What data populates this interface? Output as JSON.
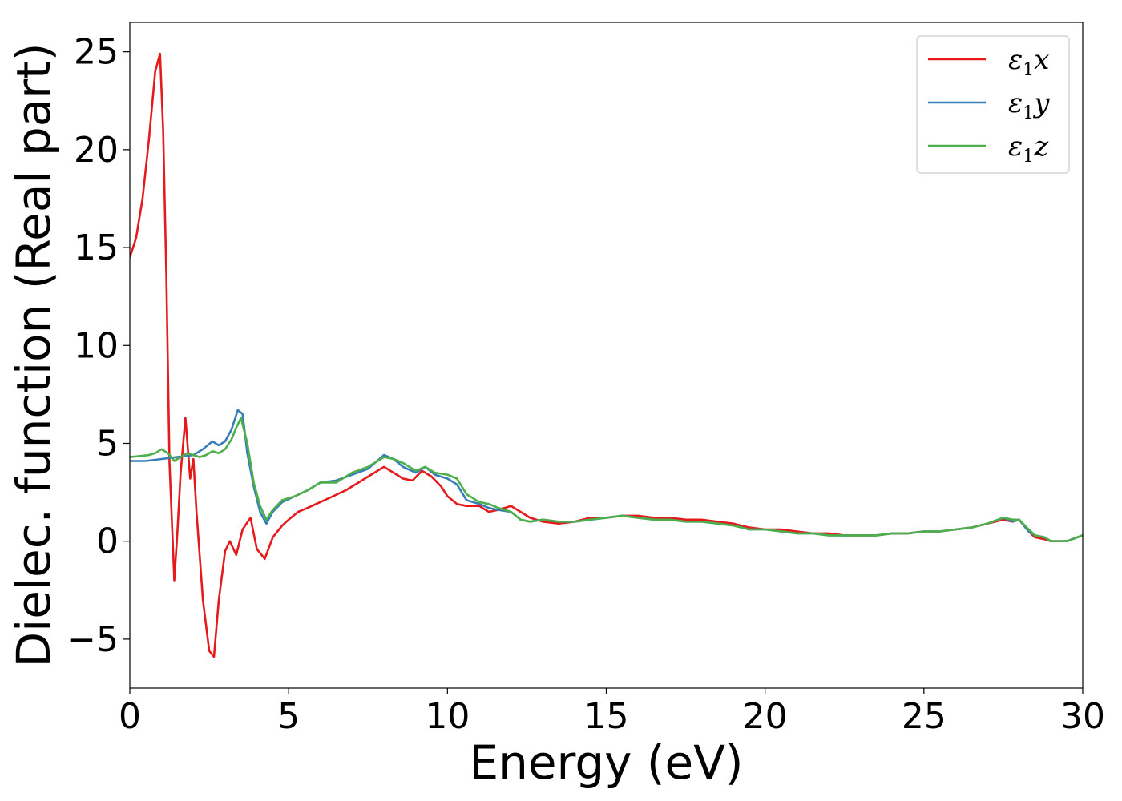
{
  "chart_data": {
    "type": "line",
    "title": "",
    "xlabel": "Energy (eV)",
    "ylabel": "Dielec. function (Real part)",
    "xlim": [
      0,
      30
    ],
    "ylim": [
      -7.5,
      26.5
    ],
    "xticks": [
      0,
      5,
      10,
      15,
      20,
      25,
      30
    ],
    "yticks": [
      -5,
      0,
      5,
      10,
      15,
      20,
      25
    ],
    "xtick_labels": [
      "0",
      "5",
      "10",
      "15",
      "20",
      "25",
      "30"
    ],
    "ytick_labels": [
      "−5",
      "0",
      "5",
      "10",
      "15",
      "20",
      "25"
    ],
    "grid": false,
    "legend_position": "top-right",
    "series": [
      {
        "name": "ε₁x",
        "legend": {
          "symbol": "ε",
          "sub": "1",
          "axis": "x"
        },
        "color": "#e41a1c",
        "x": [
          0,
          0.2,
          0.4,
          0.6,
          0.8,
          0.95,
          1.05,
          1.15,
          1.25,
          1.4,
          1.5,
          1.6,
          1.75,
          1.9,
          2.0,
          2.1,
          2.3,
          2.5,
          2.65,
          2.8,
          3.0,
          3.15,
          3.35,
          3.55,
          3.8,
          4.0,
          4.25,
          4.5,
          4.8,
          5.0,
          5.3,
          5.6,
          6.0,
          6.4,
          6.8,
          7.2,
          7.6,
          8.0,
          8.3,
          8.6,
          8.9,
          9.2,
          9.5,
          9.8,
          10.0,
          10.3,
          10.6,
          11.0,
          11.3,
          11.6,
          12.0,
          12.3,
          12.6,
          13.0,
          13.5,
          14.0,
          14.5,
          15.0,
          15.5,
          16.0,
          16.5,
          17.0,
          17.5,
          18.0,
          18.5,
          19.0,
          19.5,
          20.0,
          20.5,
          21.0,
          21.5,
          22.0,
          22.5,
          23.0,
          23.5,
          24.0,
          24.5,
          25.0,
          25.5,
          26.0,
          26.5,
          27.0,
          27.5,
          27.8,
          28.0,
          28.3,
          28.5,
          28.8,
          29.0,
          29.5,
          30.0
        ],
        "y": [
          14.5,
          15.5,
          17.5,
          20.5,
          24.0,
          24.9,
          21.0,
          13.5,
          4.0,
          -2.0,
          0.5,
          3.5,
          6.3,
          3.2,
          4.2,
          1.5,
          -3.0,
          -5.6,
          -5.9,
          -3.0,
          -0.5,
          0.0,
          -0.7,
          0.6,
          1.2,
          -0.4,
          -0.9,
          0.2,
          0.8,
          1.1,
          1.5,
          1.7,
          2.0,
          2.3,
          2.6,
          3.0,
          3.4,
          3.8,
          3.5,
          3.2,
          3.1,
          3.6,
          3.3,
          2.8,
          2.3,
          1.9,
          1.8,
          1.8,
          1.5,
          1.6,
          1.8,
          1.5,
          1.2,
          1.0,
          0.9,
          1.0,
          1.2,
          1.2,
          1.3,
          1.3,
          1.2,
          1.2,
          1.1,
          1.1,
          1.0,
          0.9,
          0.7,
          0.6,
          0.6,
          0.5,
          0.4,
          0.4,
          0.3,
          0.3,
          0.3,
          0.4,
          0.4,
          0.5,
          0.5,
          0.6,
          0.7,
          0.9,
          1.1,
          1.0,
          1.1,
          0.5,
          0.2,
          0.1,
          0.0,
          0.0,
          0.3
        ]
      },
      {
        "name": "ε₁y",
        "legend": {
          "symbol": "ε",
          "sub": "1",
          "axis": "y"
        },
        "color": "#377eb8",
        "x": [
          0,
          0.5,
          1.0,
          1.5,
          2.0,
          2.3,
          2.6,
          2.8,
          3.0,
          3.2,
          3.4,
          3.55,
          3.7,
          3.9,
          4.1,
          4.3,
          4.5,
          4.8,
          5.2,
          5.6,
          6.0,
          6.5,
          7.0,
          7.5,
          8.0,
          8.3,
          8.6,
          9.0,
          9.3,
          9.6,
          10.0,
          10.3,
          10.6,
          11.0,
          11.3,
          11.6,
          12.0,
          12.3,
          12.6,
          13.0,
          13.5,
          14.0,
          14.5,
          15.0,
          15.5,
          16.0,
          16.5,
          17.0,
          17.5,
          18.0,
          18.5,
          19.0,
          19.5,
          20.0,
          20.5,
          21.0,
          21.5,
          22.0,
          22.5,
          23.0,
          23.5,
          24.0,
          24.5,
          25.0,
          25.5,
          26.0,
          26.5,
          27.0,
          27.5,
          27.8,
          28.0,
          28.3,
          28.5,
          28.8,
          29.0,
          29.5,
          30.0
        ],
        "y": [
          4.1,
          4.1,
          4.2,
          4.3,
          4.4,
          4.7,
          5.1,
          4.9,
          5.1,
          5.7,
          6.7,
          6.5,
          4.5,
          2.8,
          1.5,
          0.9,
          1.5,
          2.0,
          2.3,
          2.6,
          3.0,
          3.1,
          3.4,
          3.7,
          4.4,
          4.2,
          3.8,
          3.5,
          3.8,
          3.4,
          3.2,
          2.9,
          2.1,
          1.9,
          1.7,
          1.6,
          1.5,
          1.1,
          1.0,
          1.1,
          1.0,
          1.0,
          1.1,
          1.2,
          1.3,
          1.2,
          1.1,
          1.1,
          1.0,
          1.0,
          0.9,
          0.8,
          0.6,
          0.6,
          0.5,
          0.4,
          0.4,
          0.3,
          0.3,
          0.3,
          0.3,
          0.4,
          0.4,
          0.5,
          0.5,
          0.6,
          0.7,
          0.9,
          1.2,
          1.0,
          1.1,
          0.5,
          0.3,
          0.2,
          0.0,
          0.0,
          0.3
        ]
      },
      {
        "name": "ε₁z",
        "legend": {
          "symbol": "ε",
          "sub": "1",
          "axis": "z"
        },
        "color": "#4daf4a",
        "x": [
          0,
          0.3,
          0.6,
          0.8,
          1.0,
          1.2,
          1.4,
          1.6,
          1.8,
          2.0,
          2.2,
          2.4,
          2.6,
          2.8,
          3.0,
          3.2,
          3.35,
          3.5,
          3.7,
          3.9,
          4.1,
          4.3,
          4.5,
          4.8,
          5.2,
          5.6,
          6.0,
          6.5,
          7.0,
          7.5,
          8.0,
          8.3,
          8.6,
          9.0,
          9.3,
          9.6,
          10.0,
          10.3,
          10.6,
          11.0,
          11.3,
          11.6,
          12.0,
          12.3,
          12.6,
          13.0,
          13.5,
          14.0,
          14.5,
          15.0,
          15.5,
          16.0,
          16.5,
          17.0,
          17.5,
          18.0,
          18.5,
          19.0,
          19.5,
          20.0,
          20.5,
          21.0,
          21.5,
          22.0,
          22.5,
          23.0,
          23.5,
          24.0,
          24.5,
          25.0,
          25.5,
          26.0,
          26.5,
          27.0,
          27.5,
          27.8,
          28.0,
          28.3,
          28.5,
          28.8,
          29.0,
          29.5,
          30.0
        ],
        "y": [
          4.3,
          4.35,
          4.4,
          4.5,
          4.7,
          4.5,
          4.1,
          4.3,
          4.5,
          4.4,
          4.3,
          4.4,
          4.6,
          4.5,
          4.7,
          5.2,
          5.8,
          6.3,
          5.0,
          3.0,
          1.8,
          1.1,
          1.6,
          2.1,
          2.3,
          2.6,
          3.0,
          3.0,
          3.5,
          3.8,
          4.3,
          4.2,
          4.0,
          3.6,
          3.8,
          3.5,
          3.4,
          3.2,
          2.4,
          2.0,
          1.9,
          1.7,
          1.5,
          1.1,
          1.0,
          1.1,
          1.0,
          1.0,
          1.1,
          1.2,
          1.3,
          1.2,
          1.1,
          1.1,
          1.0,
          1.0,
          0.9,
          0.8,
          0.6,
          0.6,
          0.5,
          0.4,
          0.4,
          0.3,
          0.3,
          0.3,
          0.3,
          0.4,
          0.4,
          0.5,
          0.5,
          0.6,
          0.7,
          0.9,
          1.2,
          1.1,
          1.1,
          0.6,
          0.3,
          0.2,
          0.0,
          0.0,
          0.3
        ]
      }
    ]
  }
}
